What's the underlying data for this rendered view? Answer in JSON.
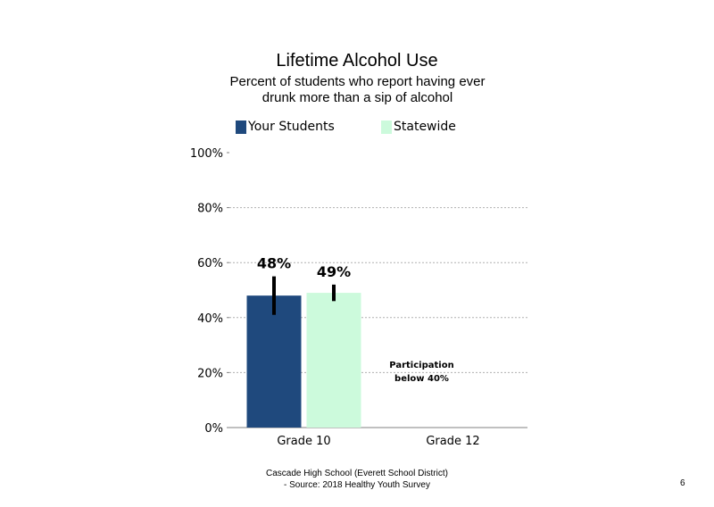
{
  "chart_data": {
    "type": "bar",
    "title": "Lifetime Alcohol Use",
    "subtitle": "Percent of students who report having ever drunk more than a sip of alcohol",
    "categories": [
      "Grade 10",
      "Grade 12"
    ],
    "series": [
      {
        "name": "Your Students",
        "color": "#1f497d",
        "values": [
          48,
          null
        ],
        "labels": [
          "48%",
          ""
        ],
        "error": [
          [
            41,
            55
          ],
          null
        ]
      },
      {
        "name": "Statewide",
        "color": "#ccfadc",
        "values": [
          49,
          null
        ],
        "labels": [
          "49%",
          ""
        ],
        "error": [
          [
            46,
            52
          ],
          null
        ]
      }
    ],
    "yticks": [
      0,
      20,
      40,
      60,
      80,
      100
    ],
    "ytick_labels": [
      "0%",
      "20%",
      "40%",
      "60%",
      "80%",
      "100%"
    ],
    "ylim": [
      0,
      100
    ],
    "grid": true,
    "legend_position": "top",
    "annotation": "Participation below 40%"
  },
  "footer": {
    "line1": "Cascade High School (Everett School District)",
    "line2": "- Source: 2018 Healthy Youth Survey"
  },
  "page_number": "6"
}
